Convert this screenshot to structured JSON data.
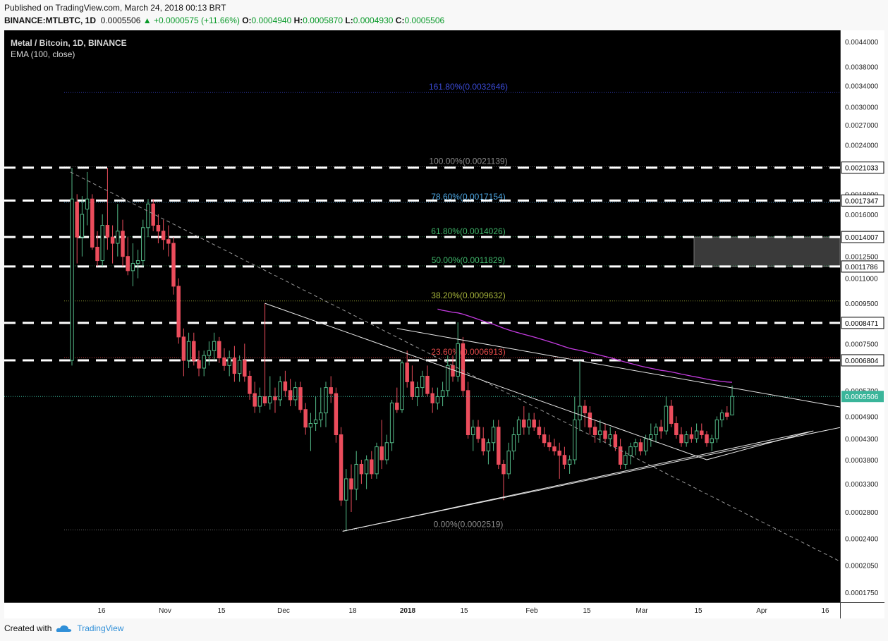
{
  "header": {
    "published": "Published on TradingView.com, March 24, 2018 00:13 BRT",
    "symbol": "BINANCE:MTLBTC, 1D",
    "last": "0.0005506",
    "change": "+0.0000575 (+11.66%)",
    "open_label": "O:",
    "open": "0.0004940",
    "high_label": "H:",
    "high": "0.0005870",
    "low_label": "L:",
    "low": "0.0004930",
    "close_label": "C:",
    "close": "0.0005506"
  },
  "legend": {
    "title": "Metal / Bitcoin, 1D, BINANCE",
    "indicator": "EMA (100, close)"
  },
  "footer": {
    "created_with": "Created with",
    "brand": "TradingView"
  },
  "colors": {
    "background": "#000000",
    "bull": "#53b987",
    "bear": "#eb4d5c",
    "ema": "#c43be0",
    "price_line": "#3ab59a",
    "white_level": "#ffffff"
  },
  "chart_data": {
    "type": "candlestick",
    "title": "Metal / Bitcoin, 1D, BINANCE",
    "price_scale": "log",
    "ylim": [
      0.000165,
      0.0047
    ],
    "price_ticks": [
      "0.0044000",
      "0.0038000",
      "0.0034000",
      "0.0030000",
      "0.0027000",
      "0.0024000",
      "0.0018000",
      "0.0016000",
      "0.0012500",
      "0.0011000",
      "0.0009500",
      "0.0007500",
      "0.0005700",
      "0.0004900",
      "0.0004300",
      "0.0003800",
      "0.0003300",
      "0.0002800",
      "0.0002400",
      "0.0002050",
      "0.0001750"
    ],
    "time_ticks": [
      "16",
      "Nov",
      "15",
      "Dec",
      "18",
      "2018",
      "15",
      "Feb",
      "15",
      "Mar",
      "15",
      "Apr",
      "16"
    ],
    "last_price": "0.0005506",
    "fib_levels": [
      {
        "label": "161.80%(0.0032646)",
        "price": 0.0032646,
        "color": "#3b4bd8"
      },
      {
        "label": "100.00%(0.0021139)",
        "price": 0.0021139,
        "color": "#8a8a8a"
      },
      {
        "label": "78.60%(0.0017154)",
        "price": 0.0017154,
        "color": "#4aa3df"
      },
      {
        "label": "61.80%(0.0014026)",
        "price": 0.0014026,
        "color": "#3fb56a"
      },
      {
        "label": "50.00%(0.0011829)",
        "price": 0.0011829,
        "color": "#3fb56a"
      },
      {
        "label": "38.20%(0.0009632)",
        "price": 0.0009632,
        "color": "#a7b53b"
      },
      {
        "label": "23.60%(0.0006913)",
        "price": 0.0006913,
        "color": "#e84a4a"
      },
      {
        "label": "0.00%(0.0002519)",
        "price": 0.0002519,
        "color": "#8a8a8a"
      }
    ],
    "horizontal_levels": [
      "0.0021033",
      "0.0017347",
      "0.0014007",
      "0.0011786",
      "0.0008471",
      "0.0006804"
    ],
    "highlight_zone": {
      "from": 0.0011786,
      "to": 0.0014007
    },
    "candles": [
      {
        "o": 0.00068,
        "h": 0.0021,
        "l": 0.00066,
        "c": 0.00175
      },
      {
        "o": 0.00172,
        "h": 0.0018,
        "l": 0.0012,
        "c": 0.0014
      },
      {
        "o": 0.0014,
        "h": 0.00178,
        "l": 0.00125,
        "c": 0.0016
      },
      {
        "o": 0.00165,
        "h": 0.00205,
        "l": 0.0015,
        "c": 0.00175
      },
      {
        "o": 0.00175,
        "h": 0.0018,
        "l": 0.0013,
        "c": 0.00132
      },
      {
        "o": 0.00132,
        "h": 0.00145,
        "l": 0.00118,
        "c": 0.00122
      },
      {
        "o": 0.00122,
        "h": 0.0016,
        "l": 0.00118,
        "c": 0.0015
      },
      {
        "o": 0.0015,
        "h": 0.0021,
        "l": 0.0013,
        "c": 0.0014
      },
      {
        "o": 0.0014,
        "h": 0.0015,
        "l": 0.0012,
        "c": 0.00135
      },
      {
        "o": 0.00135,
        "h": 0.0017,
        "l": 0.00125,
        "c": 0.00145
      },
      {
        "o": 0.00145,
        "h": 0.00155,
        "l": 0.00118,
        "c": 0.00125
      },
      {
        "o": 0.00125,
        "h": 0.0014,
        "l": 0.00112,
        "c": 0.00115
      },
      {
        "o": 0.00115,
        "h": 0.00135,
        "l": 0.00105,
        "c": 0.0012
      },
      {
        "o": 0.0012,
        "h": 0.0013,
        "l": 0.0011,
        "c": 0.00122
      },
      {
        "o": 0.00122,
        "h": 0.00155,
        "l": 0.00118,
        "c": 0.00148
      },
      {
        "o": 0.00148,
        "h": 0.00175,
        "l": 0.0014,
        "c": 0.0017
      },
      {
        "o": 0.0017,
        "h": 0.00175,
        "l": 0.00145,
        "c": 0.0015
      },
      {
        "o": 0.0015,
        "h": 0.0016,
        "l": 0.00135,
        "c": 0.00145
      },
      {
        "o": 0.00145,
        "h": 0.00155,
        "l": 0.0013,
        "c": 0.00138
      },
      {
        "o": 0.00138,
        "h": 0.0015,
        "l": 0.00125,
        "c": 0.00135
      },
      {
        "o": 0.00135,
        "h": 0.0014,
        "l": 0.001,
        "c": 0.00105
      },
      {
        "o": 0.00105,
        "h": 0.0011,
        "l": 0.00075,
        "c": 0.00078
      },
      {
        "o": 0.00078,
        "h": 0.00082,
        "l": 0.00062,
        "c": 0.00068
      },
      {
        "o": 0.00068,
        "h": 0.0008,
        "l": 0.00065,
        "c": 0.00076
      },
      {
        "o": 0.00076,
        "h": 0.0008,
        "l": 0.00066,
        "c": 0.00068
      },
      {
        "o": 0.00068,
        "h": 0.00072,
        "l": 0.00062,
        "c": 0.00065
      },
      {
        "o": 0.00065,
        "h": 0.00072,
        "l": 0.00062,
        "c": 0.0007
      },
      {
        "o": 0.0007,
        "h": 0.00076,
        "l": 0.00066,
        "c": 0.00072
      },
      {
        "o": 0.00072,
        "h": 0.0008,
        "l": 0.00068,
        "c": 0.00076
      },
      {
        "o": 0.00076,
        "h": 0.00078,
        "l": 0.00067,
        "c": 0.00069
      },
      {
        "o": 0.00069,
        "h": 0.00073,
        "l": 0.00064,
        "c": 0.00066
      },
      {
        "o": 0.00066,
        "h": 0.00072,
        "l": 0.00062,
        "c": 0.00069
      },
      {
        "o": 0.00069,
        "h": 0.00074,
        "l": 0.0006,
        "c": 0.00063
      },
      {
        "o": 0.00063,
        "h": 0.0007,
        "l": 0.0006,
        "c": 0.00068
      },
      {
        "o": 0.00068,
        "h": 0.00075,
        "l": 0.0006,
        "c": 0.00062
      },
      {
        "o": 0.00062,
        "h": 0.00064,
        "l": 0.00054,
        "c": 0.00056
      },
      {
        "o": 0.00056,
        "h": 0.0006,
        "l": 0.0005,
        "c": 0.00052
      },
      {
        "o": 0.00052,
        "h": 0.00058,
        "l": 0.0005,
        "c": 0.00055
      },
      {
        "o": 0.00055,
        "h": 0.00095,
        "l": 0.00052,
        "c": 0.00053
      },
      {
        "o": 0.00053,
        "h": 0.00062,
        "l": 0.00051,
        "c": 0.00055
      },
      {
        "o": 0.00055,
        "h": 0.00058,
        "l": 0.0005,
        "c": 0.00054
      },
      {
        "o": 0.00054,
        "h": 0.00062,
        "l": 0.00052,
        "c": 0.0006
      },
      {
        "o": 0.0006,
        "h": 0.00064,
        "l": 0.00055,
        "c": 0.00057
      },
      {
        "o": 0.00057,
        "h": 0.00061,
        "l": 0.00052,
        "c": 0.00054
      },
      {
        "o": 0.00054,
        "h": 0.0006,
        "l": 0.00052,
        "c": 0.00058
      },
      {
        "o": 0.00058,
        "h": 0.0006,
        "l": 0.0005,
        "c": 0.00051
      },
      {
        "o": 0.00051,
        "h": 0.00053,
        "l": 0.00044,
        "c": 0.00046
      },
      {
        "o": 0.00046,
        "h": 0.0005,
        "l": 0.0004,
        "c": 0.00047
      },
      {
        "o": 0.00047,
        "h": 0.00055,
        "l": 0.00045,
        "c": 0.00048
      },
      {
        "o": 0.00048,
        "h": 0.00058,
        "l": 0.00046,
        "c": 0.0005
      },
      {
        "o": 0.0005,
        "h": 0.0006,
        "l": 0.00046,
        "c": 0.00058
      },
      {
        "o": 0.00058,
        "h": 0.00062,
        "l": 0.00053,
        "c": 0.00056
      },
      {
        "o": 0.00056,
        "h": 0.00058,
        "l": 0.00042,
        "c": 0.00044
      },
      {
        "o": 0.00044,
        "h": 0.00046,
        "l": 0.00029,
        "c": 0.0003
      },
      {
        "o": 0.0003,
        "h": 0.00036,
        "l": 0.00025,
        "c": 0.00034
      },
      {
        "o": 0.00034,
        "h": 0.00037,
        "l": 0.00028,
        "c": 0.00032
      },
      {
        "o": 0.00032,
        "h": 0.0004,
        "l": 0.0003,
        "c": 0.00037
      },
      {
        "o": 0.00037,
        "h": 0.00038,
        "l": 0.00033,
        "c": 0.00035
      },
      {
        "o": 0.00035,
        "h": 0.00039,
        "l": 0.00032,
        "c": 0.00038
      },
      {
        "o": 0.00038,
        "h": 0.0004,
        "l": 0.00034,
        "c": 0.00035
      },
      {
        "o": 0.00035,
        "h": 0.00042,
        "l": 0.00034,
        "c": 0.00041
      },
      {
        "o": 0.00041,
        "h": 0.00048,
        "l": 0.00036,
        "c": 0.00038
      },
      {
        "o": 0.00038,
        "h": 0.00044,
        "l": 0.00037,
        "c": 0.00042
      },
      {
        "o": 0.00042,
        "h": 0.00054,
        "l": 0.0004,
        "c": 0.00053
      },
      {
        "o": 0.00053,
        "h": 0.00058,
        "l": 0.0005,
        "c": 0.00051
      },
      {
        "o": 0.00051,
        "h": 0.00068,
        "l": 0.0005,
        "c": 0.00067
      },
      {
        "o": 0.00067,
        "h": 0.00072,
        "l": 0.00058,
        "c": 0.0006
      },
      {
        "o": 0.0006,
        "h": 0.00066,
        "l": 0.00054,
        "c": 0.00055
      },
      {
        "o": 0.00055,
        "h": 0.0006,
        "l": 0.00052,
        "c": 0.00058
      },
      {
        "o": 0.00058,
        "h": 0.00064,
        "l": 0.00055,
        "c": 0.00062
      },
      {
        "o": 0.00062,
        "h": 0.00066,
        "l": 0.00055,
        "c": 0.00056
      },
      {
        "o": 0.00056,
        "h": 0.00058,
        "l": 0.0005,
        "c": 0.00053
      },
      {
        "o": 0.00053,
        "h": 0.00058,
        "l": 0.00051,
        "c": 0.00055
      },
      {
        "o": 0.00055,
        "h": 0.0006,
        "l": 0.00052,
        "c": 0.00057
      },
      {
        "o": 0.00057,
        "h": 0.0007,
        "l": 0.00055,
        "c": 0.00066
      },
      {
        "o": 0.00066,
        "h": 0.0007,
        "l": 0.0006,
        "c": 0.00062
      },
      {
        "o": 0.00062,
        "h": 0.00085,
        "l": 0.0006,
        "c": 0.00075
      },
      {
        "o": 0.00075,
        "h": 0.00078,
        "l": 0.00055,
        "c": 0.00057
      },
      {
        "o": 0.00057,
        "h": 0.0006,
        "l": 0.00043,
        "c": 0.00044
      },
      {
        "o": 0.00044,
        "h": 0.00048,
        "l": 0.0004,
        "c": 0.00046
      },
      {
        "o": 0.00046,
        "h": 0.00048,
        "l": 0.00042,
        "c": 0.00043
      },
      {
        "o": 0.00043,
        "h": 0.00046,
        "l": 0.00039,
        "c": 0.0004
      },
      {
        "o": 0.0004,
        "h": 0.00043,
        "l": 0.00037,
        "c": 0.00042
      },
      {
        "o": 0.00042,
        "h": 0.00048,
        "l": 0.0004,
        "c": 0.00046
      },
      {
        "o": 0.00046,
        "h": 0.00048,
        "l": 0.00036,
        "c": 0.00037
      },
      {
        "o": 0.00037,
        "h": 0.00038,
        "l": 0.0003,
        "c": 0.00035
      },
      {
        "o": 0.00035,
        "h": 0.00042,
        "l": 0.00034,
        "c": 0.0004
      },
      {
        "o": 0.0004,
        "h": 0.00046,
        "l": 0.00038,
        "c": 0.00044
      },
      {
        "o": 0.00044,
        "h": 0.00049,
        "l": 0.00042,
        "c": 0.00048
      },
      {
        "o": 0.00048,
        "h": 0.00052,
        "l": 0.00044,
        "c": 0.00046
      },
      {
        "o": 0.00046,
        "h": 0.0005,
        "l": 0.00044,
        "c": 0.00048
      },
      {
        "o": 0.00048,
        "h": 0.0005,
        "l": 0.00045,
        "c": 0.00046
      },
      {
        "o": 0.00046,
        "h": 0.00048,
        "l": 0.00043,
        "c": 0.00044
      },
      {
        "o": 0.00044,
        "h": 0.00046,
        "l": 0.00041,
        "c": 0.00042
      },
      {
        "o": 0.00042,
        "h": 0.00044,
        "l": 0.0004,
        "c": 0.00041
      },
      {
        "o": 0.00041,
        "h": 0.00043,
        "l": 0.00039,
        "c": 0.0004
      },
      {
        "o": 0.0004,
        "h": 0.00042,
        "l": 0.00034,
        "c": 0.00039
      },
      {
        "o": 0.00039,
        "h": 0.00041,
        "l": 0.00036,
        "c": 0.00037
      },
      {
        "o": 0.00037,
        "h": 0.00039,
        "l": 0.00035,
        "c": 0.00038
      },
      {
        "o": 0.00038,
        "h": 0.00055,
        "l": 0.00037,
        "c": 0.00048
      },
      {
        "o": 0.00048,
        "h": 0.00068,
        "l": 0.00045,
        "c": 0.00052
      },
      {
        "o": 0.00052,
        "h": 0.00054,
        "l": 0.00046,
        "c": 0.0005
      },
      {
        "o": 0.0005,
        "h": 0.00052,
        "l": 0.00044,
        "c": 0.00046
      },
      {
        "o": 0.00046,
        "h": 0.00048,
        "l": 0.00042,
        "c": 0.00044
      },
      {
        "o": 0.00044,
        "h": 0.00048,
        "l": 0.00042,
        "c": 0.00045
      },
      {
        "o": 0.00045,
        "h": 0.00047,
        "l": 0.00042,
        "c": 0.00043
      },
      {
        "o": 0.00043,
        "h": 0.00046,
        "l": 0.00041,
        "c": 0.00044
      },
      {
        "o": 0.00044,
        "h": 0.00045,
        "l": 0.0004,
        "c": 0.00041
      },
      {
        "o": 0.00041,
        "h": 0.00043,
        "l": 0.00036,
        "c": 0.00037
      },
      {
        "o": 0.00037,
        "h": 0.0004,
        "l": 0.00036,
        "c": 0.00039
      },
      {
        "o": 0.00039,
        "h": 0.00042,
        "l": 0.00037,
        "c": 0.00041
      },
      {
        "o": 0.00041,
        "h": 0.00043,
        "l": 0.00039,
        "c": 0.00042
      },
      {
        "o": 0.00042,
        "h": 0.00043,
        "l": 0.00039,
        "c": 0.0004
      },
      {
        "o": 0.0004,
        "h": 0.00044,
        "l": 0.00039,
        "c": 0.00043
      },
      {
        "o": 0.00043,
        "h": 0.00047,
        "l": 0.00041,
        "c": 0.00044
      },
      {
        "o": 0.00044,
        "h": 0.00047,
        "l": 0.00042,
        "c": 0.00046
      },
      {
        "o": 0.00046,
        "h": 0.00048,
        "l": 0.00043,
        "c": 0.00045
      },
      {
        "o": 0.00045,
        "h": 0.00055,
        "l": 0.00044,
        "c": 0.00052
      },
      {
        "o": 0.00052,
        "h": 0.00054,
        "l": 0.00046,
        "c": 0.00047
      },
      {
        "o": 0.00047,
        "h": 0.00049,
        "l": 0.00043,
        "c": 0.00044
      },
      {
        "o": 0.00044,
        "h": 0.00046,
        "l": 0.00041,
        "c": 0.00042
      },
      {
        "o": 0.00042,
        "h": 0.00045,
        "l": 0.00041,
        "c": 0.00044
      },
      {
        "o": 0.00044,
        "h": 0.00046,
        "l": 0.00042,
        "c": 0.00043
      },
      {
        "o": 0.00043,
        "h": 0.00047,
        "l": 0.00042,
        "c": 0.00045
      },
      {
        "o": 0.00045,
        "h": 0.00047,
        "l": 0.00043,
        "c": 0.00044
      },
      {
        "o": 0.00044,
        "h": 0.00045,
        "l": 0.00041,
        "c": 0.00042
      },
      {
        "o": 0.00042,
        "h": 0.00044,
        "l": 0.0004,
        "c": 0.00043
      },
      {
        "o": 0.00043,
        "h": 0.00049,
        "l": 0.00042,
        "c": 0.00048
      },
      {
        "o": 0.00048,
        "h": 0.00051,
        "l": 0.00046,
        "c": 0.0005
      },
      {
        "o": 0.0005,
        "h": 0.00052,
        "l": 0.00048,
        "c": 0.00049
      },
      {
        "o": 0.000494,
        "h": 0.000587,
        "l": 0.000493,
        "c": 0.0005506
      }
    ]
  }
}
